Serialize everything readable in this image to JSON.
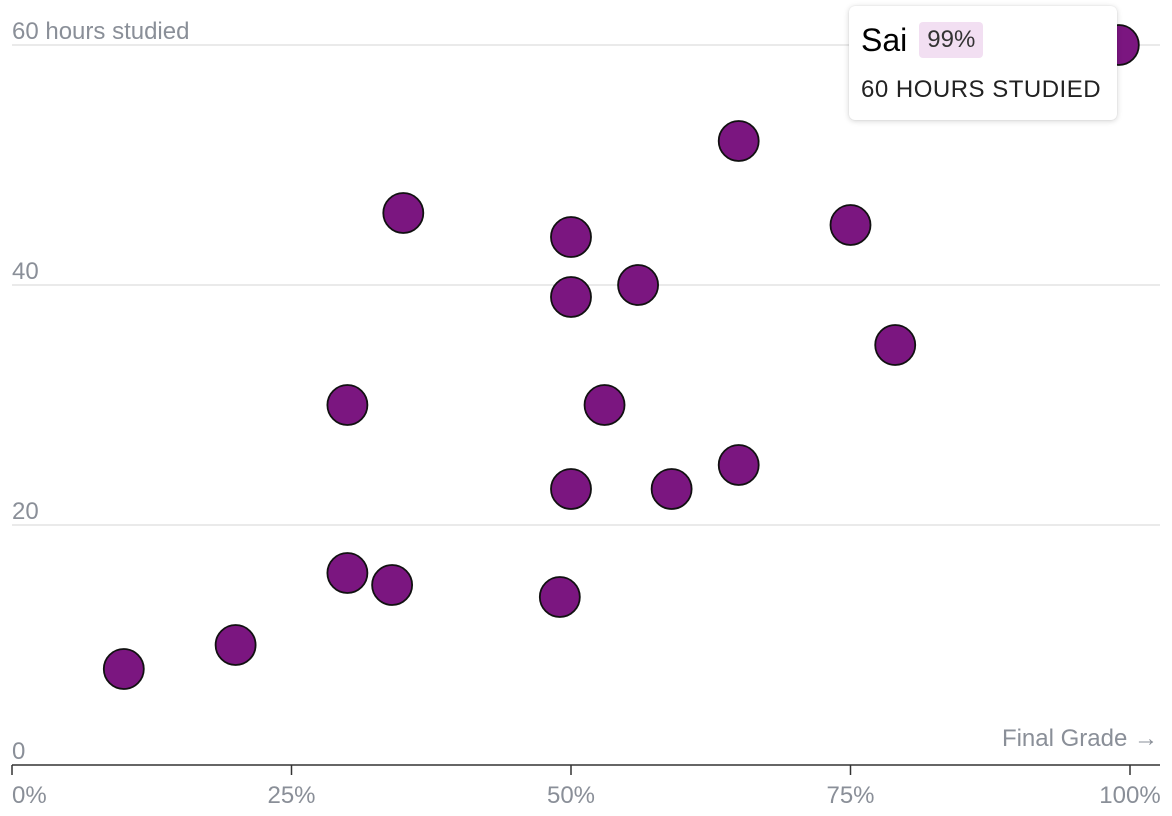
{
  "chart_data": {
    "type": "scatter",
    "x_axis": {
      "label": "Final Grade →",
      "min": 0,
      "max": 100,
      "ticks": [
        0,
        25,
        50,
        75,
        100
      ],
      "tick_labels": [
        "0%",
        "25%",
        "50%",
        "75%",
        "100%"
      ]
    },
    "y_axis": {
      "min": 0,
      "max": 60,
      "ticks": [
        0,
        20,
        40,
        60
      ],
      "tick_labels": [
        "0",
        "20",
        "40",
        "60 hours studied"
      ]
    },
    "grid": "horizontal",
    "points": [
      {
        "x": 10,
        "y": 8
      },
      {
        "x": 20,
        "y": 10
      },
      {
        "x": 30,
        "y": 16
      },
      {
        "x": 34,
        "y": 15
      },
      {
        "x": 30,
        "y": 30
      },
      {
        "x": 35,
        "y": 46
      },
      {
        "x": 49,
        "y": 14
      },
      {
        "x": 50,
        "y": 23
      },
      {
        "x": 50,
        "y": 39
      },
      {
        "x": 50,
        "y": 44
      },
      {
        "x": 53,
        "y": 30
      },
      {
        "x": 56,
        "y": 40
      },
      {
        "x": 59,
        "y": 23
      },
      {
        "x": 65,
        "y": 25
      },
      {
        "x": 65,
        "y": 52
      },
      {
        "x": 75,
        "y": 45
      },
      {
        "x": 79,
        "y": 35
      },
      {
        "x": 99,
        "y": 60
      }
    ],
    "point_color": "#7b1680"
  },
  "tooltip": {
    "name": "Sai",
    "grade": "99%",
    "detail": "60 HOURS STUDIED"
  }
}
